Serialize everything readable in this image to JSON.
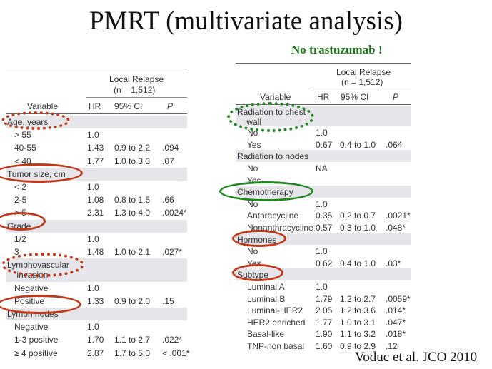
{
  "title": "PMRT (multivariate analysis)",
  "note": "No trastuzumab !",
  "citation": "Voduc et al. JCO 2010",
  "headers": {
    "group": "Local Relapse",
    "n": "(n = 1,512)",
    "variable": "Variable",
    "hr": "HR",
    "ci": "95% CI",
    "p": "P"
  },
  "left_rows": [
    {
      "label": "Age, years",
      "type": "group"
    },
    {
      "label": "> 55",
      "hr": "1.0",
      "ci": "",
      "p": ""
    },
    {
      "label": "40-55",
      "hr": "1.43",
      "ci": "0.9 to 2.2",
      "p": ".094"
    },
    {
      "label": "< 40",
      "hr": "1.77",
      "ci": "1.0 to 3.3",
      "p": ".07"
    },
    {
      "label": "Tumor size, cm",
      "type": "group"
    },
    {
      "label": "< 2",
      "hr": "1.0",
      "ci": "",
      "p": ""
    },
    {
      "label": "2-5",
      "hr": "1.08",
      "ci": "0.8 to 1.5",
      "p": ".66"
    },
    {
      "label": "> 5",
      "hr": "2.31",
      "ci": "1.3 to 4.0",
      "p": ".0024*"
    },
    {
      "label": "Grade",
      "type": "group"
    },
    {
      "label": "1/2",
      "hr": "1.0",
      "ci": "",
      "p": ""
    },
    {
      "label": "3",
      "hr": "1.48",
      "ci": "1.0 to 2.1",
      "p": ".027*"
    },
    {
      "label": "Lymphovascular\n    invasion",
      "type": "group2"
    },
    {
      "label": "Negative",
      "hr": "1.0",
      "ci": "",
      "p": ""
    },
    {
      "label": "Positive",
      "hr": "1.33",
      "ci": "0.9 to 2.0",
      "p": ".15"
    },
    {
      "label": "Lymph nodes",
      "type": "group"
    },
    {
      "label": "Negative",
      "hr": "1.0",
      "ci": "",
      "p": ""
    },
    {
      "label": "1-3 positive",
      "hr": "1.70",
      "ci": "1.1 to 2.7",
      "p": ".022*"
    },
    {
      "label": "≥ 4 positive",
      "hr": "2.87",
      "ci": "1.7 to 5.0",
      "p": "< .001*"
    }
  ],
  "right_rows": [
    {
      "label": "Radiation to chest\n    wall",
      "type": "group2"
    },
    {
      "label": "No",
      "hr": "1.0",
      "ci": "",
      "p": ""
    },
    {
      "label": "Yes",
      "hr": "0.67",
      "ci": "0.4 to 1.0",
      "p": ".064"
    },
    {
      "label": "Radiation to nodes",
      "type": "group"
    },
    {
      "label": "No",
      "hr": "NA",
      "ci": "",
      "p": ""
    },
    {
      "label": "Yes",
      "hr": "",
      "ci": "",
      "p": ""
    },
    {
      "label": "Chemotherapy",
      "type": "group"
    },
    {
      "label": "No",
      "hr": "1.0",
      "ci": "",
      "p": ""
    },
    {
      "label": "Anthracycline",
      "hr": "0.35",
      "ci": "0.2 to 0.7",
      "p": ".0021*"
    },
    {
      "label": "Nonanthracycline",
      "hr": "0.57",
      "ci": "0.3 to 1.0",
      "p": ".048*"
    },
    {
      "label": "Hormones",
      "type": "group"
    },
    {
      "label": "No",
      "hr": "1.0",
      "ci": "",
      "p": ""
    },
    {
      "label": "Yes",
      "hr": "0.62",
      "ci": "0.4 to 1.0",
      "p": ".03*"
    },
    {
      "label": "Subtype",
      "type": "group"
    },
    {
      "label": "Luminal A",
      "hr": "1.0",
      "ci": "",
      "p": ""
    },
    {
      "label": "Luminal B",
      "hr": "1.79",
      "ci": "1.2 to 2.7",
      "p": ".0059*"
    },
    {
      "label": "Luminal-HER2",
      "hr": "2.05",
      "ci": "1.2 to 3.6",
      "p": ".014*"
    },
    {
      "label": "HER2 enriched",
      "hr": "1.77",
      "ci": "1.0 to 3.1",
      "p": ".047*"
    },
    {
      "label": "Basal-like",
      "hr": "1.90",
      "ci": "1.1 to 3.2",
      "p": ".018*"
    },
    {
      "label": "TNP-non basal",
      "hr": "1.60",
      "ci": "0.9 to 2.9",
      "p": ".12"
    }
  ]
}
